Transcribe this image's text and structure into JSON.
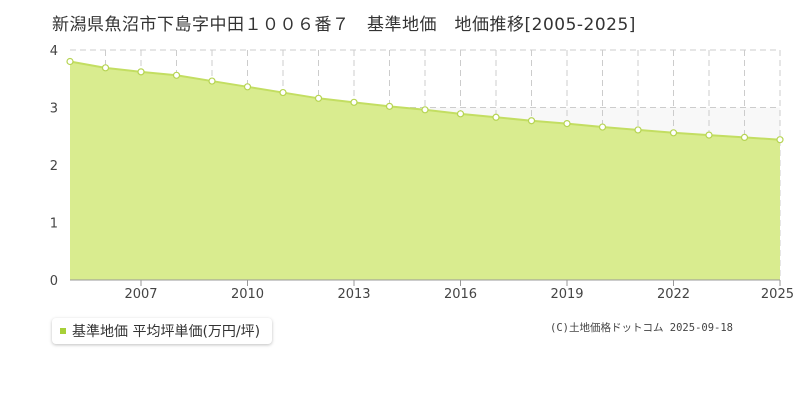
{
  "header": {
    "title": "新潟県魚沼市下島字中田１００６番７　基準地価　地価推移[2005-2025]"
  },
  "legend": {
    "label": "基準地価 平均坪単価(万円/坪)"
  },
  "copyright": "(C)土地価格ドットコム 2025-09-18",
  "colors": {
    "fill": "#d9ec8f",
    "line": "#c3de62",
    "point_stroke": "#b6d453",
    "upper_band": "#f8f8f8",
    "grid": "#cccccc",
    "axis": "#999999",
    "legend_swatch": "#a7d038"
  },
  "chart_data": {
    "type": "area",
    "title": "",
    "xlabel": "",
    "ylabel": "",
    "x": [
      2005,
      2006,
      2007,
      2008,
      2009,
      2010,
      2011,
      2012,
      2013,
      2014,
      2015,
      2016,
      2017,
      2018,
      2019,
      2020,
      2021,
      2022,
      2023,
      2024,
      2025
    ],
    "series": [
      {
        "name": "基準地価 平均坪単価(万円/坪)",
        "values": [
          3.8,
          3.69,
          3.62,
          3.56,
          3.46,
          3.36,
          3.26,
          3.16,
          3.09,
          3.02,
          2.96,
          2.89,
          2.83,
          2.77,
          2.72,
          2.66,
          2.61,
          2.56,
          2.52,
          2.48,
          2.44
        ]
      }
    ],
    "x_tick_labels": [
      "2007",
      "2010",
      "2013",
      "2016",
      "2019",
      "2022",
      "2025"
    ],
    "y_tick_labels": [
      "0",
      "1",
      "2",
      "3",
      "4"
    ],
    "xlim": [
      2005,
      2025
    ],
    "ylim": [
      0,
      4
    ],
    "grid": true,
    "legend_position": "bottom-left"
  }
}
